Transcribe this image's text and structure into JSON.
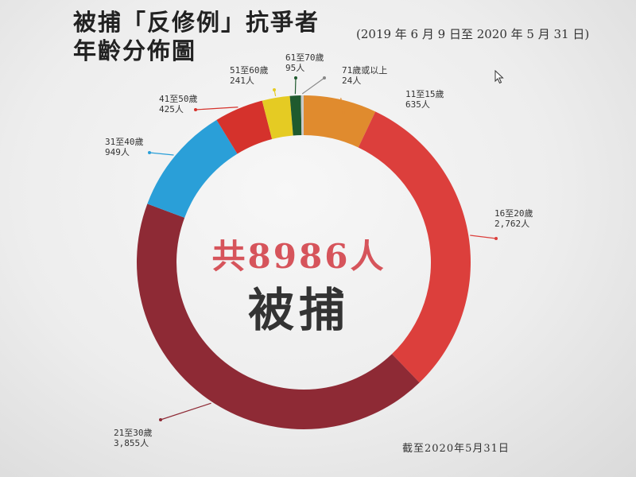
{
  "title": {
    "line1": "被捕「反修例」抗爭者",
    "line2": "年齡分佈圖"
  },
  "period": "(2019 年 6 月 9 日至 2020 年 5 月 31 日)",
  "footnote": "截至2020年5月31日",
  "center": {
    "total": "共8986人",
    "sub": "被捕"
  },
  "chart_data": {
    "type": "pie",
    "donut": true,
    "total": 8986,
    "categories": [
      "11至15歲",
      "16至20歲",
      "21至30歲",
      "31至40歲",
      "41至50歲",
      "51至60歲",
      "61至70歲",
      "71歲或以上"
    ],
    "values": [
      635,
      2762,
      3855,
      949,
      425,
      241,
      95,
      24
    ],
    "value_labels": [
      "635人",
      "2,762人",
      "3,855人",
      "949人",
      "425人",
      "241人",
      "95人",
      "24人"
    ],
    "colors": [
      "#e08b2e",
      "#dc3f3c",
      "#8e2a35",
      "#2a9fd8",
      "#d5322c",
      "#e5cb23",
      "#1f5a2e",
      "#c9c9c9"
    ]
  }
}
